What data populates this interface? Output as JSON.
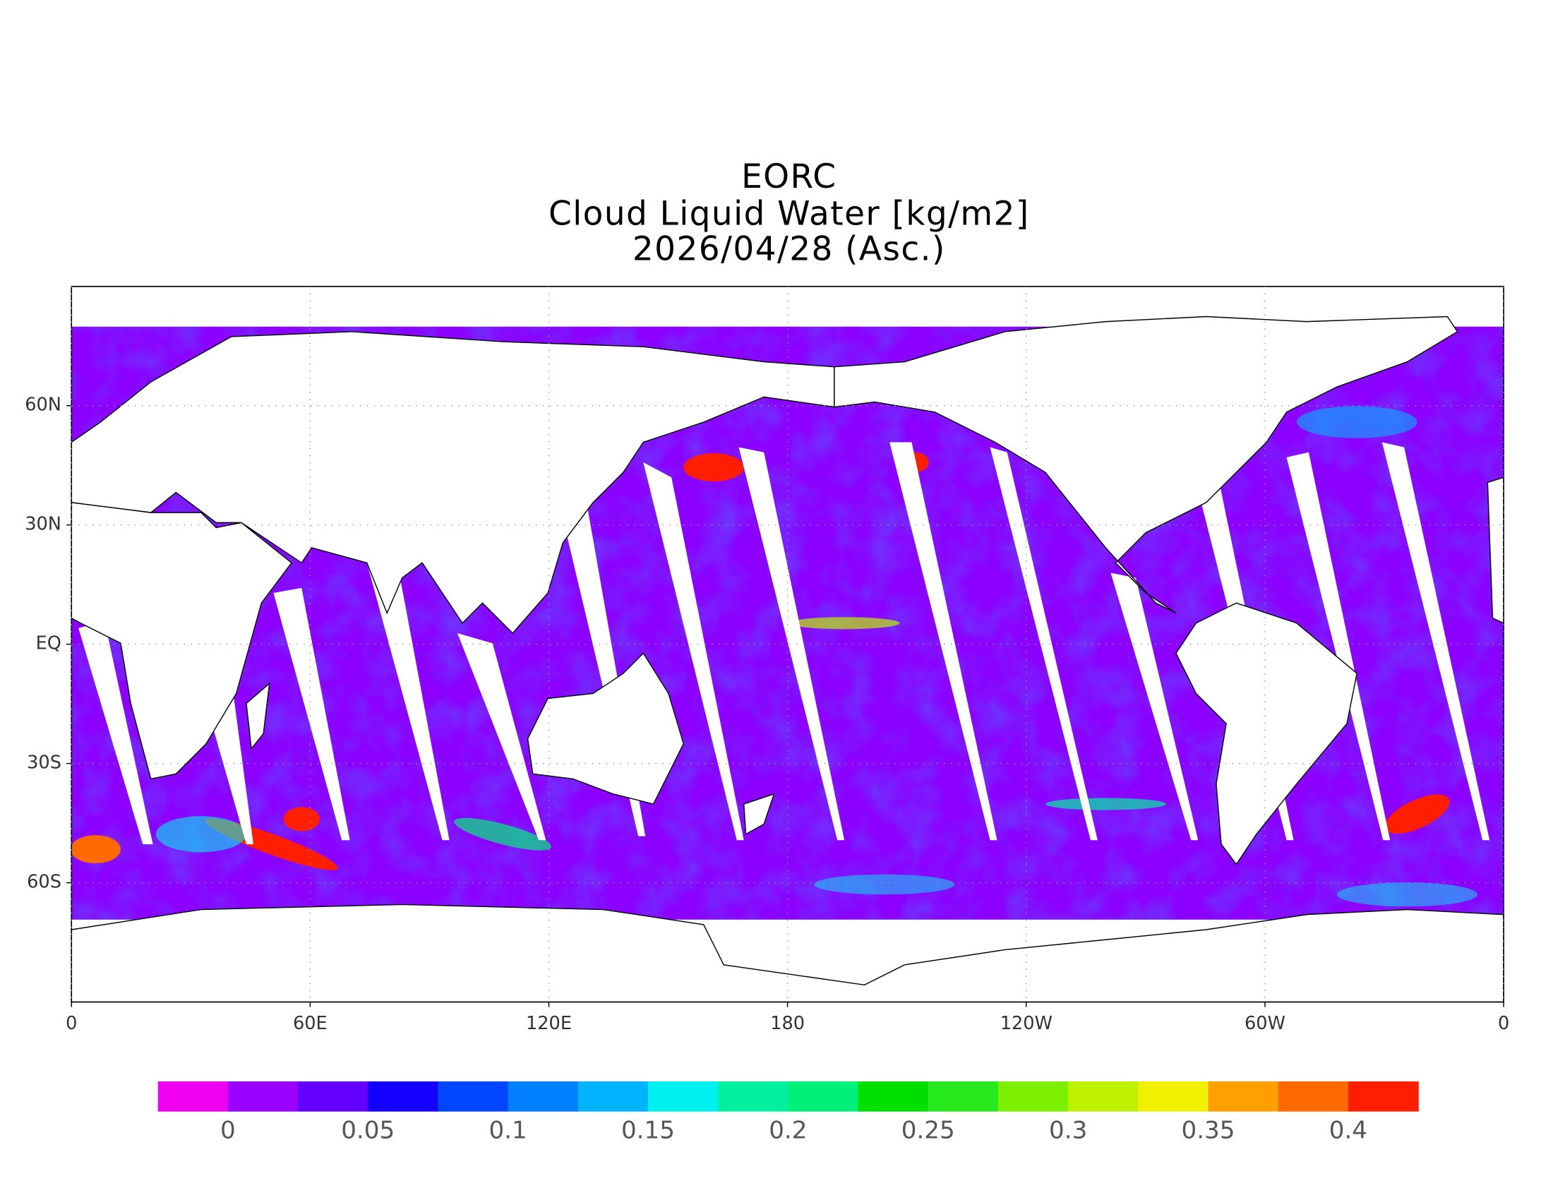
{
  "title": [
    "EORC",
    "Cloud Liquid Water [kg/m2]",
    "2026/04/28 (Asc.)"
  ],
  "map": {
    "xlim": [
      0,
      360
    ],
    "ylim": [
      -90,
      90
    ],
    "xticks": [
      0,
      {
        "value": 60,
        "label": "60E"
      },
      {
        "value": 120,
        "label": "120E"
      },
      180,
      {
        "value": 240,
        "label": "120W"
      },
      {
        "value": 300,
        "label": "60W"
      },
      {
        "value": 360,
        "label": "0"
      }
    ],
    "yticks": [
      {
        "value": 60,
        "label": "60N"
      },
      {
        "value": 30,
        "label": "30N"
      },
      {
        "value": 0,
        "label": "EQ"
      },
      {
        "value": -30,
        "label": "30S"
      },
      {
        "value": -60,
        "label": "60S"
      }
    ],
    "grid": true
  },
  "colorbar": {
    "range": [
      -0.025,
      0.425
    ],
    "colors": [
      "#f000f0",
      "#9a00ff",
      "#6400ff",
      "#1400ff",
      "#0046ff",
      "#0080ff",
      "#00b4ff",
      "#00f0f0",
      "#00f0a0",
      "#00f07a",
      "#00e000",
      "#28e81e",
      "#7cf000",
      "#bef000",
      "#f0f000",
      "#ffa000",
      "#ff6a00",
      "#ff1e00"
    ],
    "ticks": [
      0,
      0.05,
      0.1,
      0.15,
      0.2,
      0.25,
      0.3,
      0.35,
      0.4
    ]
  }
}
